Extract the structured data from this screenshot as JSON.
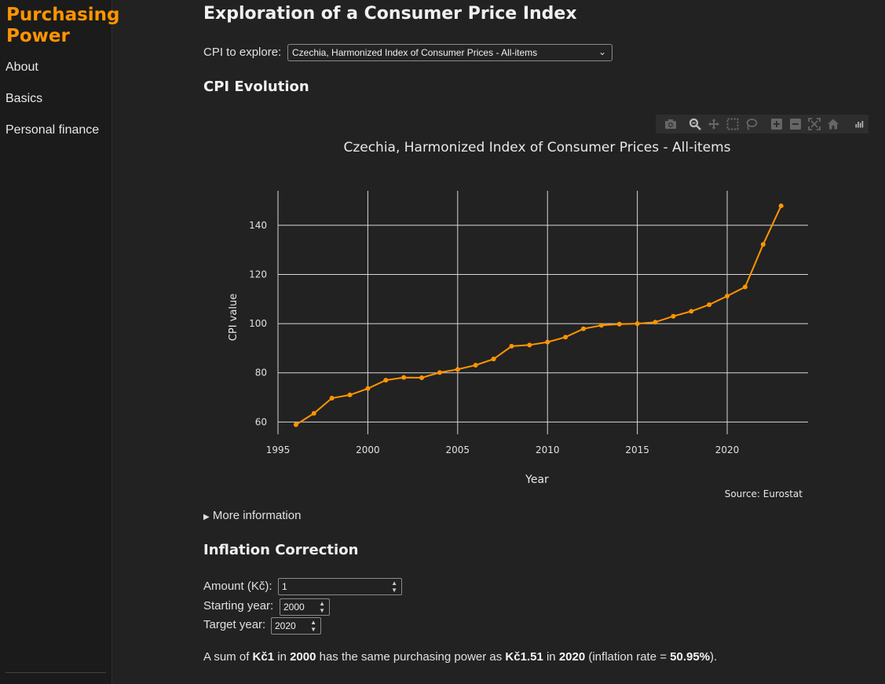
{
  "sidebar": {
    "brand_line1": "Purchasing",
    "brand_line2": "Power",
    "items": [
      {
        "label": "About"
      },
      {
        "label": "Basics"
      },
      {
        "label": "Personal finance"
      }
    ]
  },
  "page": {
    "title": "Exploration of a Consumer Price Index",
    "cpi_label": "CPI to explore:",
    "cpi_selected": "Czechia, Harmonized Index of Consumer Prices - All-items",
    "section_evolution": "CPI Evolution",
    "more_info": "More information",
    "section_correction": "Inflation Correction",
    "amount_label": "Amount (Kč):",
    "amount_value": "1",
    "start_label": "Starting year:",
    "start_value": "2000",
    "target_label": "Target year:",
    "target_value": "2020",
    "result": {
      "p1": "A sum of ",
      "amount": "Kč1",
      "p2": " in ",
      "start_year": "2000",
      "p3": " has the same purchasing power as ",
      "converted": "Kč1.51",
      "p4": " in ",
      "target_year": "2020",
      "p5": " (inflation rate = ",
      "rate": "50.95%",
      "p6": ")."
    }
  },
  "modebar_icons": [
    "camera-icon",
    "zoom-icon",
    "pan-icon",
    "box-select-icon",
    "lasso-icon",
    "zoom-in-icon",
    "zoom-out-icon",
    "autoscale-icon",
    "reset-axes-icon",
    "plotly-logo-icon"
  ],
  "colors": {
    "accent": "#ff9500",
    "line": "#ff9500",
    "background": "#222222"
  },
  "chart_data": {
    "type": "line",
    "title": "Czechia, Harmonized Index of Consumer Prices - All-items",
    "xlabel": "Year",
    "ylabel": "CPI value",
    "source_note": "Source: Eurostat",
    "xlim": [
      1995,
      2024.5
    ],
    "ylim": [
      55,
      154
    ],
    "x_ticks": [
      1995,
      2000,
      2005,
      2010,
      2015,
      2020
    ],
    "y_ticks": [
      60,
      80,
      100,
      120,
      140
    ],
    "grid": true,
    "series": [
      {
        "x": [
          1996,
          1997,
          1998,
          1999,
          2000,
          2001,
          2002,
          2003,
          2004,
          2005,
          2006,
          2007,
          2008,
          2009,
          2010,
          2011,
          2012,
          2013,
          2014,
          2015,
          2016,
          2017,
          2018,
          2019,
          2020,
          2021,
          2022,
          2023
        ],
        "y": [
          58.9,
          63.5,
          69.7,
          71.0,
          73.6,
          77.0,
          78.1,
          78.0,
          80.1,
          81.4,
          83.1,
          85.6,
          90.8,
          91.3,
          92.5,
          94.5,
          97.9,
          99.3,
          99.8,
          100.0,
          100.6,
          103.0,
          105.0,
          107.7,
          111.2,
          114.9,
          132.2,
          147.9
        ]
      }
    ]
  }
}
